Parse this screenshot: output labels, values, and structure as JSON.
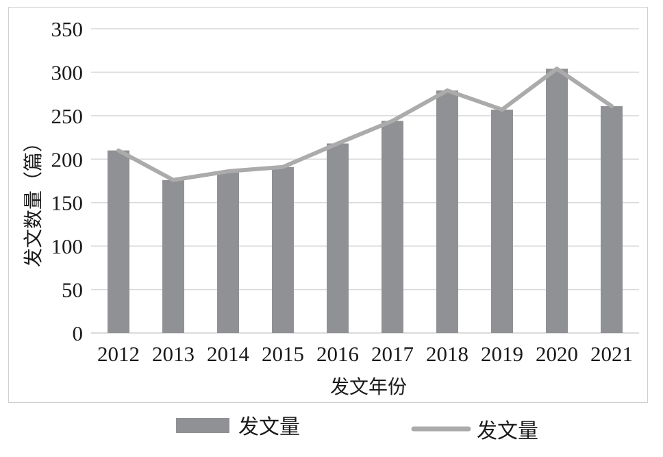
{
  "chart_data": {
    "type": "bar",
    "categories": [
      "2012",
      "2013",
      "2014",
      "2015",
      "2016",
      "2017",
      "2018",
      "2019",
      "2020",
      "2021"
    ],
    "series": [
      {
        "name": "发文量",
        "type": "bar",
        "values": [
          210,
          176,
          186,
          191,
          218,
          244,
          279,
          257,
          304,
          261
        ],
        "color": "#8f9194"
      },
      {
        "name": "发文量",
        "type": "line",
        "values": [
          210,
          176,
          186,
          191,
          218,
          244,
          279,
          257,
          304,
          261
        ],
        "color": "#ababab"
      }
    ],
    "title": "",
    "xlabel": "发文年份",
    "ylabel": "发文数量（篇）",
    "ylim": [
      0,
      350
    ],
    "yticks": [
      "0",
      "50",
      "100",
      "150",
      "200",
      "250",
      "300",
      "350"
    ],
    "grid": true,
    "legend_position": "bottom",
    "gridline_color": "#d9d9d9"
  }
}
